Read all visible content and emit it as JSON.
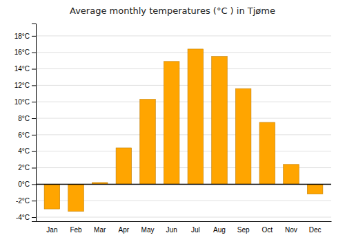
{
  "chart_data": {
    "type": "bar",
    "title": "Average monthly temperatures (°C ) in Tjøme",
    "categories": [
      "Jan",
      "Feb",
      "Mar",
      "Apr",
      "May",
      "Jun",
      "Jul",
      "Aug",
      "Sep",
      "Oct",
      "Nov",
      "Dec"
    ],
    "values": [
      -3.0,
      -3.3,
      0.2,
      4.4,
      10.3,
      14.9,
      16.4,
      15.5,
      11.6,
      7.5,
      2.4,
      -1.2
    ],
    "color": "#FFA500",
    "ylim": [
      -4.5,
      19.5
    ],
    "yticks": [
      {
        "value": -4,
        "label": "-4°C"
      },
      {
        "value": -2,
        "label": "-2°C"
      },
      {
        "value": 0,
        "label": "0°C"
      },
      {
        "value": 2,
        "label": "2°C"
      },
      {
        "value": 4,
        "label": "4°C"
      },
      {
        "value": 6,
        "label": "6°C"
      },
      {
        "value": 8,
        "label": "8°C"
      },
      {
        "value": 10,
        "label": "10°C"
      },
      {
        "value": 12,
        "label": "12°C"
      },
      {
        "value": 14,
        "label": "14°C"
      },
      {
        "value": 16,
        "label": "16°C"
      },
      {
        "value": 18,
        "label": "18°C"
      }
    ],
    "grid": true
  }
}
